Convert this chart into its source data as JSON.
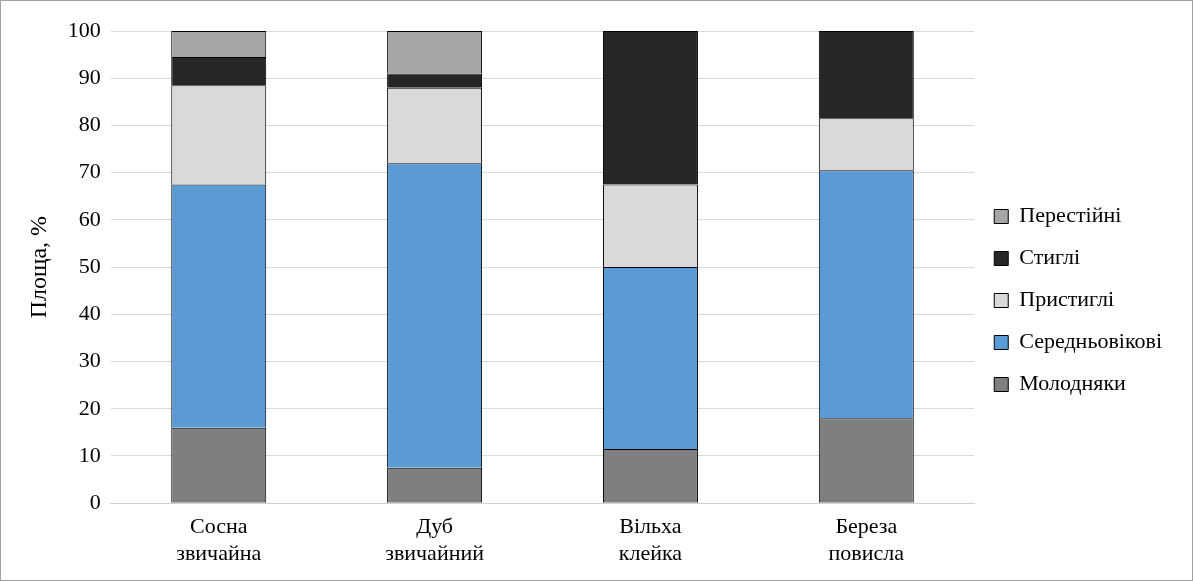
{
  "chart_data": {
    "type": "bar",
    "stacked": true,
    "ylabel": "Площа, %",
    "categories": [
      "Сосна звичайна",
      "Дуб звичайний",
      "Вільха клейка",
      "Береза повисла"
    ],
    "series": [
      {
        "name": "Молодняки",
        "color": "#7f7f7f",
        "values": [
          16,
          7.5,
          11.5,
          18
        ]
      },
      {
        "name": "Середньовікові",
        "color": "#5b9bd5",
        "values": [
          51.5,
          64.5,
          38.5,
          52.5
        ]
      },
      {
        "name": "Пристиглі",
        "color": "#d9d9d9",
        "values": [
          21,
          16,
          17.5,
          11
        ]
      },
      {
        "name": "Стиглі",
        "color": "#262626",
        "values": [
          6,
          3,
          32.5,
          18.5
        ]
      },
      {
        "name": "Перестійні",
        "color": "#a6a6a6",
        "values": [
          5.5,
          9,
          0,
          0
        ]
      }
    ],
    "ylim": [
      0,
      100
    ],
    "yticks": [
      0,
      10,
      20,
      30,
      40,
      50,
      60,
      70,
      80,
      90,
      100
    ],
    "grid": "y",
    "legend": "right"
  }
}
